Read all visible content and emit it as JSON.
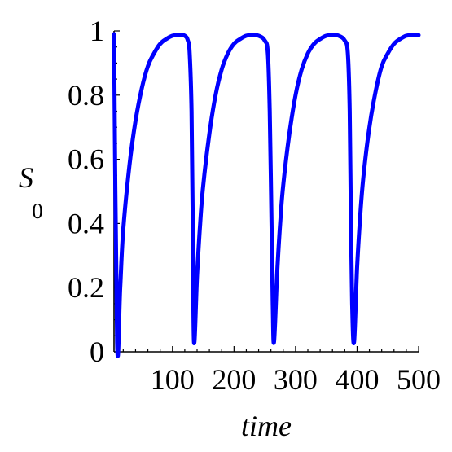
{
  "chart_data": {
    "type": "line",
    "xlabel": "time",
    "ylabel": "S",
    "ylabel_subscript": "0",
    "xlim": [
      5,
      500
    ],
    "ylim": [
      0,
      1
    ],
    "xticks": [
      100,
      200,
      300,
      400,
      500
    ],
    "xtick_labels": [
      "100",
      "200",
      "300",
      "400",
      "500"
    ],
    "yticks": [
      0,
      0.2,
      0.4,
      0.6,
      0.8,
      1
    ],
    "ytick_labels": [
      "0",
      "0.2",
      "0.4",
      "0.6",
      "0.8",
      "1"
    ],
    "grid": false,
    "series": [
      {
        "color": "#0000ff",
        "x": [
          5,
          10,
          15,
          20,
          30,
          40,
          50,
          60,
          70,
          80,
          90,
          100,
          110,
          120,
          125,
          128,
          131,
          133,
          135,
          140,
          145,
          150,
          160,
          170,
          180,
          190,
          200,
          210,
          220,
          230,
          240,
          250,
          255,
          258,
          261,
          263,
          265,
          270,
          275,
          280,
          290,
          300,
          310,
          320,
          330,
          340,
          350,
          360,
          370,
          380,
          385,
          388,
          390,
          392,
          395,
          400,
          405,
          410,
          420,
          430,
          440,
          450,
          460,
          470,
          480,
          490,
          500
        ],
        "y": [
          0.99,
          0.03,
          0.2,
          0.38,
          0.58,
          0.72,
          0.82,
          0.89,
          0.93,
          0.96,
          0.975,
          0.985,
          0.987,
          0.985,
          0.97,
          0.93,
          0.75,
          0.4,
          0.03,
          0.24,
          0.4,
          0.52,
          0.68,
          0.8,
          0.88,
          0.93,
          0.96,
          0.975,
          0.985,
          0.987,
          0.985,
          0.97,
          0.93,
          0.75,
          0.4,
          0.15,
          0.03,
          0.24,
          0.4,
          0.52,
          0.68,
          0.8,
          0.88,
          0.93,
          0.96,
          0.975,
          0.985,
          0.987,
          0.985,
          0.97,
          0.93,
          0.75,
          0.4,
          0.15,
          0.03,
          0.26,
          0.42,
          0.54,
          0.7,
          0.81,
          0.89,
          0.93,
          0.96,
          0.975,
          0.985,
          0.987,
          0.987
        ]
      }
    ]
  }
}
